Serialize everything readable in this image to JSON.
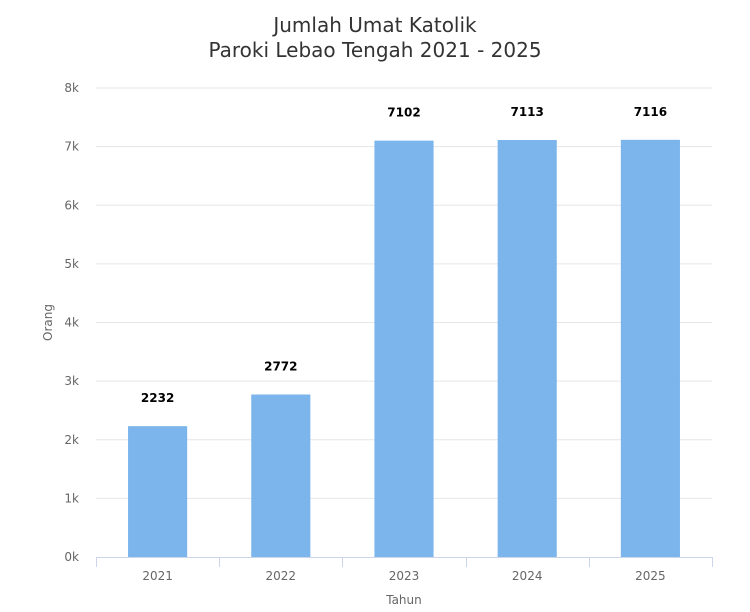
{
  "chart_data": {
    "type": "bar",
    "title": [
      "Jumlah Umat Katolik",
      "Paroki Lebao Tengah 2021 - 2025"
    ],
    "xlabel": "Tahun",
    "ylabel": "Orang",
    "categories": [
      "2021",
      "2022",
      "2023",
      "2024",
      "2025"
    ],
    "values": [
      2232,
      2772,
      7102,
      7113,
      7116
    ],
    "data_labels": [
      "2232",
      "2772",
      "7102",
      "7113",
      "7116"
    ],
    "ylim": [
      0,
      8000
    ],
    "yticks": [
      0,
      1000,
      2000,
      3000,
      4000,
      5000,
      6000,
      7000,
      8000
    ],
    "ytick_labels": [
      "0k",
      "1k",
      "2k",
      "3k",
      "4k",
      "5k",
      "6k",
      "7k",
      "8k"
    ],
    "grid": true,
    "legend": false,
    "bar_color": "#7cb5ec",
    "grid_color": "#e6e6e6",
    "axis_line_color": "#ccd6eb"
  }
}
